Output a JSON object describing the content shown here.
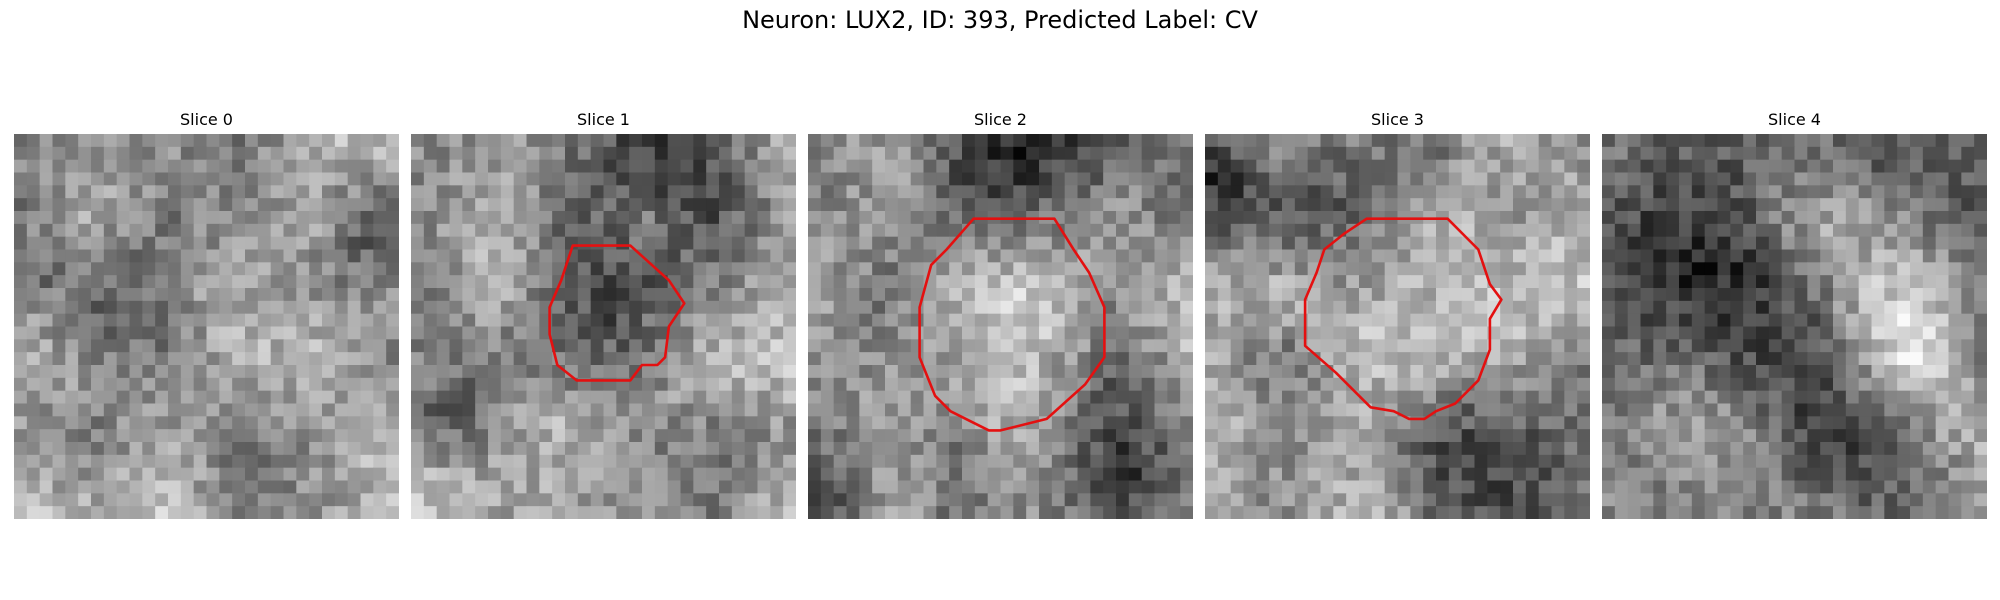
{
  "figure": {
    "title": "Neuron: LUX2, ID: 393, Predicted Label: CV"
  },
  "colors": {
    "contour": "#e41010",
    "colormap": "gray"
  },
  "panels": [
    {
      "title": "Slice 0",
      "has_contour": false
    },
    {
      "title": "Slice 1",
      "has_contour": true
    },
    {
      "title": "Slice 2",
      "has_contour": true
    },
    {
      "title": "Slice 3",
      "has_contour": true
    },
    {
      "title": "Slice 4",
      "has_contour": false
    }
  ]
}
